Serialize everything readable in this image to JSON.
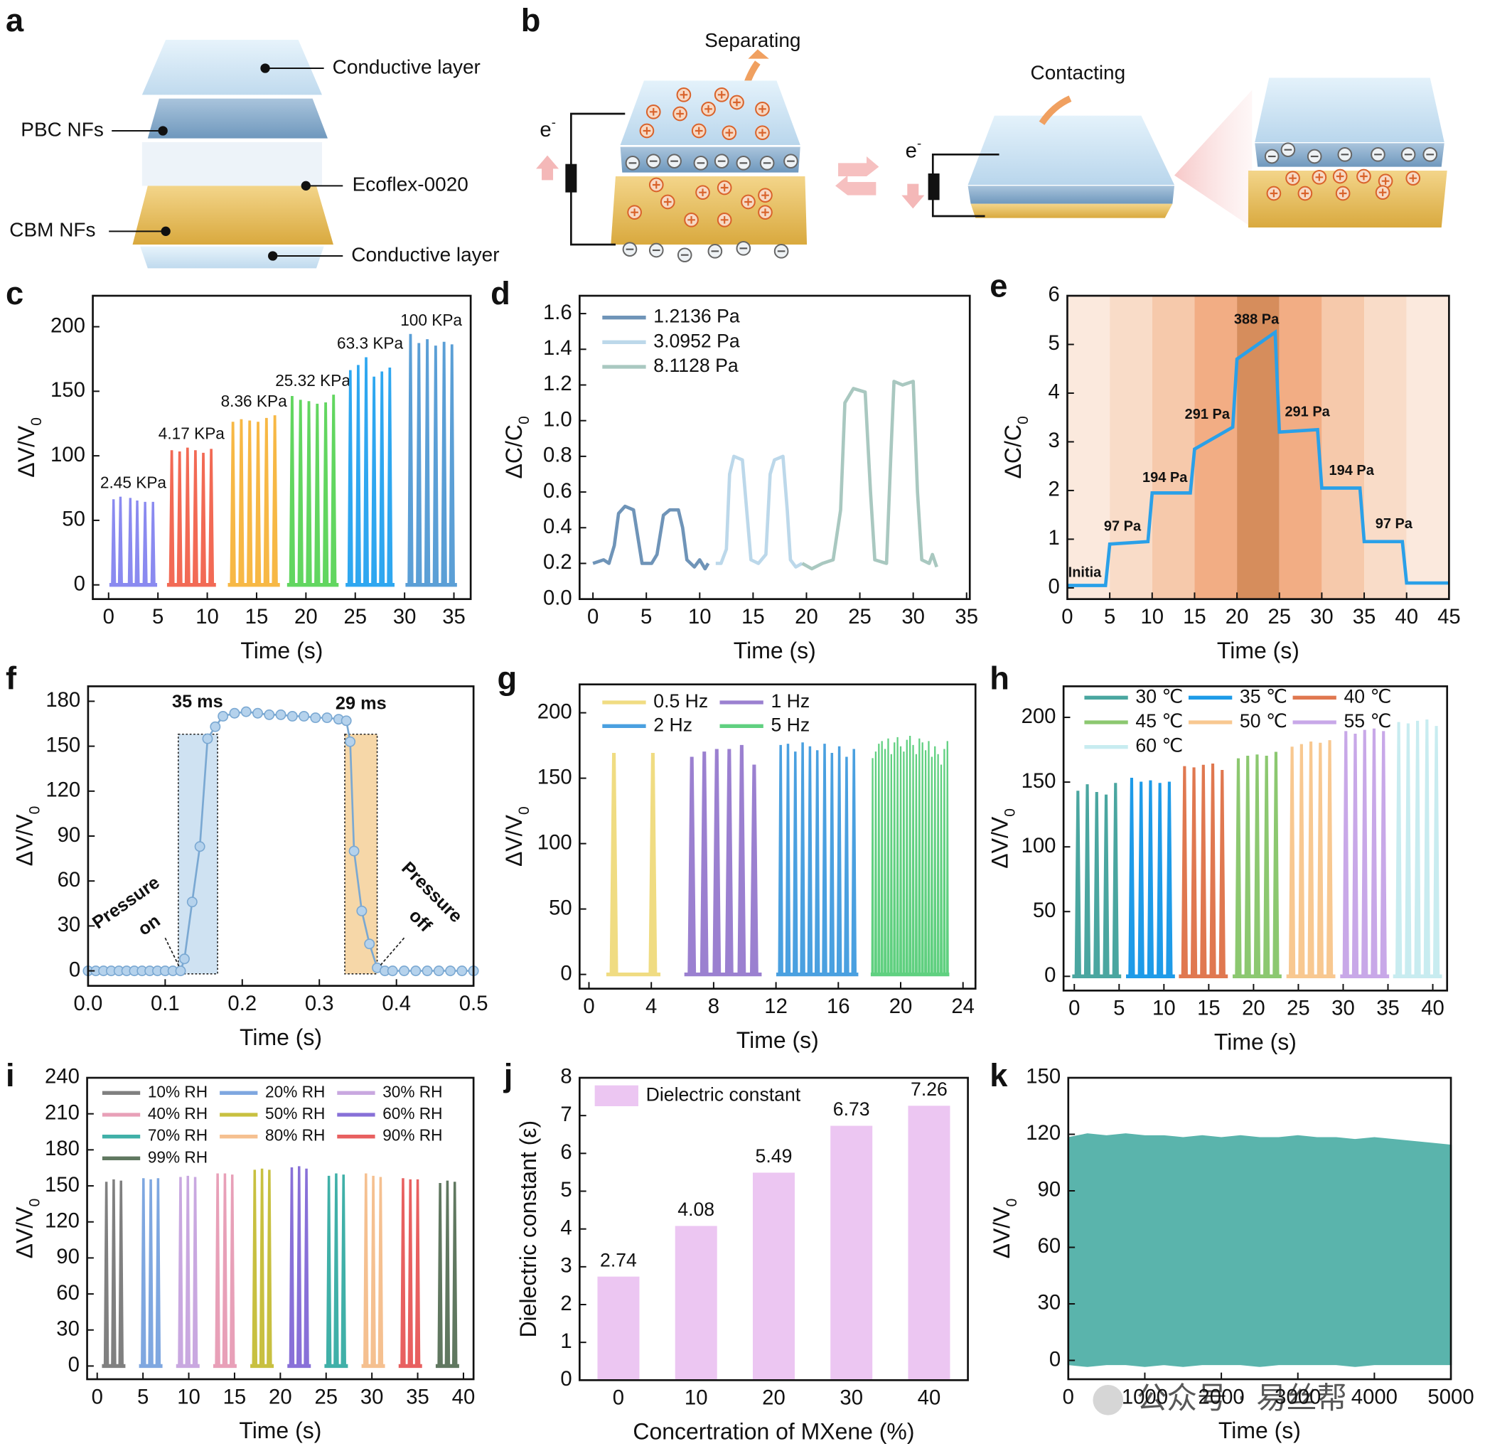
{
  "diagram_a": {
    "panel_label": "a",
    "labels": [
      "Conductive layer",
      "PBC NFs",
      "Ecoflex-0020",
      "CBM NFs",
      "Conductive layer"
    ]
  },
  "diagram_b": {
    "panel_label": "b",
    "labels": [
      "Separating",
      "Contacting"
    ],
    "electron": "e",
    "electron_charge": "-"
  },
  "chart_data": [
    {
      "type": "spike",
      "panel_label": "c",
      "x_label": "Time (s)",
      "y_label": "ΔV/V",
      "y_label_sub": "0",
      "xlim": [
        -1.6,
        36.7
      ],
      "ylim": [
        -11,
        224
      ],
      "xticks": [
        0,
        5,
        10,
        15,
        20,
        25,
        30,
        35
      ],
      "yticks": [
        0,
        50,
        100,
        150,
        200
      ],
      "series_labels": true,
      "series": [
        {
          "name": "2.45 KPa",
          "color": "#8a8af0",
          "x": [
            0.5,
            1.2,
            2.2,
            2.9,
            3.7,
            4.5
          ],
          "values": [
            66,
            68,
            67,
            65,
            64,
            64
          ]
        },
        {
          "name": "4.17 KPa",
          "color": "#f26a55",
          "x": [
            6.4,
            7.2,
            8.0,
            8.8,
            9.6,
            10.4
          ],
          "values": [
            104,
            103,
            106,
            104,
            102,
            105
          ]
        },
        {
          "name": "8.36 KPa",
          "color": "#f7b845",
          "x": [
            12.6,
            13.45,
            14.3,
            15.15,
            16.0,
            16.85
          ],
          "values": [
            126,
            128,
            127,
            126,
            129,
            131
          ]
        },
        {
          "name": "25.32 KPa",
          "color": "#62d660",
          "x": [
            18.6,
            19.45,
            20.3,
            21.15,
            22.0,
            22.8
          ],
          "values": [
            146,
            143,
            142,
            140,
            141,
            147
          ]
        },
        {
          "name": "63.3 KPa",
          "color": "#2fa7f0",
          "x": [
            24.5,
            25.3,
            26.1,
            26.9,
            27.7,
            28.5
          ],
          "values": [
            166,
            170,
            176,
            161,
            165,
            168
          ]
        },
        {
          "name": "100 KPa",
          "color": "#5b9fd6",
          "x": [
            30.6,
            31.45,
            32.3,
            33.15,
            34.0,
            34.8
          ],
          "values": [
            194,
            187,
            190,
            185,
            188,
            186
          ]
        }
      ]
    },
    {
      "type": "line",
      "panel_label": "d",
      "x_label": "Time (s)",
      "y_label": "ΔC/C",
      "y_label_sub": "0",
      "xlim": [
        -1.25,
        35.3
      ],
      "ylim": [
        0,
        1.7
      ],
      "xticks": [
        0,
        5,
        10,
        15,
        20,
        25,
        30,
        35
      ],
      "yticks": [
        {
          "value": 0,
          "label": "0.0"
        },
        0.2,
        0.4,
        0.6,
        0.8,
        {
          "value": 1,
          "label": "1.0"
        },
        1.2,
        1.4,
        1.6
      ],
      "legend": true,
      "series": [
        {
          "name": "1.2136 Pa",
          "color": "#6f94b8",
          "x": [
            0,
            1,
            1.5,
            2,
            2.4,
            3,
            3.8,
            4.2,
            4.6,
            5.5,
            6,
            6.6,
            7.2,
            8,
            8.4,
            8.8,
            9.5,
            10,
            10.5,
            10.8
          ],
          "values": [
            0.2,
            0.22,
            0.2,
            0.3,
            0.48,
            0.52,
            0.5,
            0.35,
            0.2,
            0.2,
            0.25,
            0.47,
            0.5,
            0.5,
            0.4,
            0.22,
            0.18,
            0.22,
            0.17,
            0.2
          ]
        },
        {
          "name": "3.0952 Pa",
          "color": "#bcd8ea",
          "x": [
            11.5,
            12,
            12.5,
            12.8,
            13.2,
            14,
            14.4,
            14.8,
            15.5,
            16.2,
            16.6,
            17,
            17.8,
            18.2,
            18.5,
            19,
            19.6
          ],
          "values": [
            0.2,
            0.2,
            0.28,
            0.7,
            0.8,
            0.78,
            0.5,
            0.22,
            0.2,
            0.25,
            0.7,
            0.78,
            0.8,
            0.5,
            0.22,
            0.18,
            0.2
          ]
        },
        {
          "name": "8.1128 Pa",
          "color": "#a9c8c0",
          "x": [
            19.6,
            20.5,
            21.5,
            22.5,
            23.2,
            23.6,
            24.4,
            25.5,
            26,
            26.4,
            27.5,
            27.9,
            28.2,
            29,
            30,
            30.4,
            30.8,
            31.5,
            31.8,
            32.2
          ],
          "values": [
            0.2,
            0.17,
            0.2,
            0.22,
            0.5,
            1.1,
            1.18,
            1.16,
            0.6,
            0.22,
            0.2,
            0.8,
            1.22,
            1.2,
            1.22,
            0.6,
            0.22,
            0.2,
            0.25,
            0.18
          ]
        }
      ]
    },
    {
      "type": "step",
      "panel_label": "e",
      "x_label": "Time (s)",
      "y_label": "ΔC/C",
      "y_label_sub": "0",
      "xlim": [
        0,
        45
      ],
      "ylim": [
        -0.23,
        6
      ],
      "xticks": [
        0,
        5,
        10,
        15,
        20,
        25,
        30,
        35,
        40,
        45
      ],
      "yticks": [
        0,
        1,
        2,
        3,
        4,
        5,
        6
      ],
      "color": "#2aa0e8",
      "band_colors": [
        "#fbe9dd",
        "#f9dcc8",
        "#f6c9ab",
        "#f2ad84",
        "#d68d5c",
        "#f2ad84",
        "#f6c9ab",
        "#f9dcc8",
        "#fbe9dd"
      ],
      "x": [
        0,
        4.5,
        5,
        9.5,
        10,
        14.5,
        15,
        19.5,
        20,
        24.5,
        25,
        29.5,
        30,
        34.5,
        35,
        39.5,
        40,
        45
      ],
      "values": [
        0.05,
        0.05,
        0.9,
        0.95,
        1.95,
        1.95,
        2.85,
        3.3,
        4.7,
        5.25,
        3.2,
        3.25,
        2.05,
        2.05,
        0.95,
        0.95,
        0.1,
        0.1
      ],
      "annotations": [
        "Initia",
        "97 Pa",
        "194 Pa",
        "291 Pa",
        "388 Pa",
        "291 Pa",
        "194 Pa",
        "97 Pa"
      ]
    },
    {
      "type": "scatter-line",
      "panel_label": "f",
      "x_label": "Time (s)",
      "y_label": "ΔV/V",
      "y_label_sub": "0",
      "xlim": [
        0,
        0.5
      ],
      "ylim": [
        -10,
        190
      ],
      "xticks": [
        {
          "value": 0,
          "label": "0.0"
        },
        0.1,
        0.2,
        0.3,
        0.4,
        0.5
      ],
      "yticks": [
        0,
        30,
        60,
        90,
        120,
        150,
        180
      ],
      "color": "#7aa8d2",
      "x": [
        0,
        0.01,
        0.02,
        0.03,
        0.04,
        0.05,
        0.06,
        0.07,
        0.08,
        0.09,
        0.1,
        0.11,
        0.12,
        0.125,
        0.135,
        0.145,
        0.155,
        0.165,
        0.175,
        0.19,
        0.205,
        0.22,
        0.235,
        0.25,
        0.265,
        0.28,
        0.295,
        0.31,
        0.325,
        0.335,
        0.34,
        0.345,
        0.355,
        0.365,
        0.375,
        0.385,
        0.395,
        0.41,
        0.425,
        0.44,
        0.455,
        0.47,
        0.485,
        0.5
      ],
      "values": [
        0,
        0,
        0,
        0,
        0,
        0,
        0,
        0,
        0,
        0,
        0,
        0,
        0,
        8,
        46,
        83,
        155,
        163,
        170,
        172,
        173,
        172,
        171,
        171,
        170,
        170,
        169,
        169,
        168,
        167,
        153,
        80,
        40,
        18,
        2,
        0,
        0,
        0,
        0,
        0,
        0,
        0,
        0,
        0
      ],
      "annotations": [
        "35 ms",
        "29 ms",
        "Pressure",
        "on",
        "Pressure",
        "off"
      ]
    },
    {
      "type": "spike",
      "panel_label": "g",
      "x_label": "Time (s)",
      "y_label": "ΔV/V",
      "y_label_sub": "0",
      "xlim": [
        -0.6,
        24.8
      ],
      "ylim": [
        -10.9,
        221.7
      ],
      "xticks": [
        0,
        4,
        8,
        12,
        16,
        20,
        24
      ],
      "yticks": [
        0,
        50,
        100,
        150,
        200
      ],
      "legend": true,
      "series": [
        {
          "name": "0.5 Hz",
          "color": "#f0dc82",
          "x": [
            1.6,
            4.1
          ],
          "values": [
            169,
            169
          ]
        },
        {
          "name": "1 Hz",
          "color": "#9b80d0",
          "x": [
            6.6,
            7.4,
            8.2,
            9.0,
            9.8,
            10.6
          ],
          "values": [
            166,
            170,
            172,
            172,
            175,
            160
          ]
        },
        {
          "name": "2 Hz",
          "color": "#4aa0e0",
          "x": [
            12.3,
            12.77,
            13.24,
            13.71,
            14.18,
            14.65,
            15.12,
            15.59,
            16.06,
            16.53,
            17.0
          ],
          "values": [
            175,
            176,
            170,
            177,
            174,
            171,
            176,
            169,
            174,
            166,
            172
          ]
        },
        {
          "name": "5 Hz",
          "color": "#60d080",
          "x": [
            18.2,
            18.4,
            18.6,
            18.8,
            19.0,
            19.2,
            19.4,
            19.6,
            19.8,
            20.0,
            20.2,
            20.4,
            20.6,
            20.8,
            21.0,
            21.2,
            21.4,
            21.6,
            21.8,
            22.0,
            22.2,
            22.4,
            22.6,
            22.8,
            23.0
          ],
          "values": [
            165,
            170,
            176,
            178,
            172,
            180,
            168,
            177,
            181,
            174,
            170,
            179,
            182,
            175,
            168,
            180,
            177,
            171,
            178,
            166,
            174,
            168,
            160,
            172,
            178
          ]
        }
      ]
    },
    {
      "type": "spike",
      "panel_label": "h",
      "x_label": "Time (s)",
      "y_label": "ΔV/V",
      "y_label_sub": "0",
      "xlim": [
        -1.2,
        41.6
      ],
      "ylim": [
        -11,
        224
      ],
      "xticks": [
        0,
        5,
        10,
        15,
        20,
        25,
        30,
        35,
        40
      ],
      "yticks": [
        0,
        50,
        100,
        150,
        200
      ],
      "legend": true,
      "series": [
        {
          "name": "30 ℃",
          "color": "#4aa6a0",
          "x": [
            0.4,
            1.45,
            2.5,
            3.55,
            4.6
          ],
          "values": [
            143,
            148,
            142,
            140,
            149
          ]
        },
        {
          "name": "35 ℃",
          "color": "#1e9be8",
          "x": [
            6.4,
            7.45,
            8.5,
            9.55,
            10.6
          ],
          "values": [
            153,
            150,
            151,
            149,
            150
          ]
        },
        {
          "name": "40 ℃",
          "color": "#e07850",
          "x": [
            12.3,
            13.35,
            14.4,
            15.45,
            16.5
          ],
          "values": [
            162,
            161,
            163,
            164,
            159
          ]
        },
        {
          "name": "45 ℃",
          "color": "#8cc870",
          "x": [
            18.3,
            19.35,
            20.4,
            21.45,
            22.5
          ],
          "values": [
            168,
            170,
            171,
            170,
            173
          ]
        },
        {
          "name": "50 ℃",
          "color": "#f8c890",
          "x": [
            24.3,
            25.35,
            26.4,
            27.45,
            28.5
          ],
          "values": [
            177,
            179,
            181,
            180,
            182
          ]
        },
        {
          "name": "55 ℃",
          "color": "#c8a8e8",
          "x": [
            30.3,
            31.35,
            32.4,
            33.45,
            34.5
          ],
          "values": [
            189,
            187,
            190,
            191,
            189
          ]
        },
        {
          "name": "60 ℃",
          "color": "#c8ecf0",
          "x": [
            36.2,
            37.25,
            38.3,
            39.35,
            40.4
          ],
          "values": [
            196,
            195,
            197,
            198,
            193
          ]
        }
      ]
    },
    {
      "type": "spike",
      "panel_label": "i",
      "x_label": "Time (s)",
      "y_label": "ΔV/V",
      "y_label_sub": "0",
      "xlim": [
        -1.1,
        41.1
      ],
      "ylim": [
        -11,
        240
      ],
      "xticks": [
        0,
        5,
        10,
        15,
        20,
        25,
        30,
        35,
        40
      ],
      "yticks": [
        0,
        30,
        60,
        90,
        120,
        150,
        180,
        210,
        240
      ],
      "legend": true,
      "series": [
        {
          "name": "10% RH",
          "color": "#808080",
          "x": [
            1.0,
            1.8,
            2.6
          ],
          "values": [
            153,
            155,
            154
          ]
        },
        {
          "name": "20% RH",
          "color": "#7fa7e0",
          "x": [
            5.05,
            5.85,
            6.65
          ],
          "values": [
            156,
            155,
            156
          ]
        },
        {
          "name": "30% RH",
          "color": "#c9a8e0",
          "x": [
            9.1,
            9.9,
            10.7
          ],
          "values": [
            157,
            158,
            157
          ]
        },
        {
          "name": "40% RH",
          "color": "#e8a0b8",
          "x": [
            13.15,
            13.95,
            14.75
          ],
          "values": [
            160,
            160,
            159
          ]
        },
        {
          "name": "50% RH",
          "color": "#c8c040",
          "x": [
            17.2,
            18.0,
            18.8
          ],
          "values": [
            163,
            164,
            163
          ]
        },
        {
          "name": "60% RH",
          "color": "#8870d8",
          "x": [
            21.25,
            22.05,
            22.85
          ],
          "values": [
            165,
            166,
            164
          ]
        },
        {
          "name": "70% RH",
          "color": "#40b0a8",
          "x": [
            25.3,
            26.1,
            26.9
          ],
          "values": [
            158,
            160,
            159
          ]
        },
        {
          "name": "80% RH",
          "color": "#f5c090",
          "x": [
            29.35,
            30.15,
            30.95
          ],
          "values": [
            160,
            158,
            157
          ]
        },
        {
          "name": "90% RH",
          "color": "#e86060",
          "x": [
            33.4,
            34.2,
            35.0
          ],
          "values": [
            156,
            155,
            155
          ]
        },
        {
          "name": "99% RH",
          "color": "#607860",
          "x": [
            37.45,
            38.25,
            39.05
          ],
          "values": [
            152,
            154,
            153
          ]
        }
      ]
    },
    {
      "type": "bar",
      "panel_label": "j",
      "x_label": "Concertration of MXene (%)",
      "y_label": "Dielectric constant (ε)",
      "ylim": [
        0,
        8
      ],
      "yticks": [
        0,
        1,
        2,
        3,
        4,
        5,
        6,
        7,
        8
      ],
      "categories": [
        "0",
        "10",
        "20",
        "30",
        "40"
      ],
      "legend": true,
      "series": [
        {
          "name": "Dielectric constant",
          "color": "#ecc6f2",
          "values": [
            2.74,
            4.08,
            5.49,
            6.73,
            7.26
          ]
        }
      ]
    },
    {
      "type": "area",
      "panel_label": "k",
      "x_label": "Time (s)",
      "y_label": "ΔV/V",
      "y_label_sub": "0",
      "xlim": [
        0,
        5000
      ],
      "ylim": [
        -10,
        150
      ],
      "xticks": [
        0,
        1000,
        2000,
        3000,
        4000,
        5000
      ],
      "yticks": [
        0,
        30,
        60,
        90,
        120,
        150
      ],
      "color": "#5ab4ac",
      "x": [
        0,
        250,
        500,
        750,
        1000,
        1250,
        1500,
        1750,
        2000,
        2250,
        2500,
        2750,
        3000,
        3250,
        3500,
        3750,
        4000,
        4250,
        4500,
        4750,
        5000
      ],
      "high": [
        118,
        120,
        119,
        120,
        119,
        119,
        118,
        119,
        118,
        119,
        118,
        118,
        119,
        118,
        118,
        117,
        118,
        117,
        116,
        115,
        114
      ],
      "low": [
        -2,
        -3,
        -2,
        -2,
        -3,
        -2,
        -3,
        -2,
        -2,
        -2,
        -3,
        -2,
        -2,
        -2,
        -2,
        -3,
        -2,
        -2,
        -2,
        -2,
        -2
      ],
      "watermark": "公众号 · 易丝帮"
    }
  ]
}
